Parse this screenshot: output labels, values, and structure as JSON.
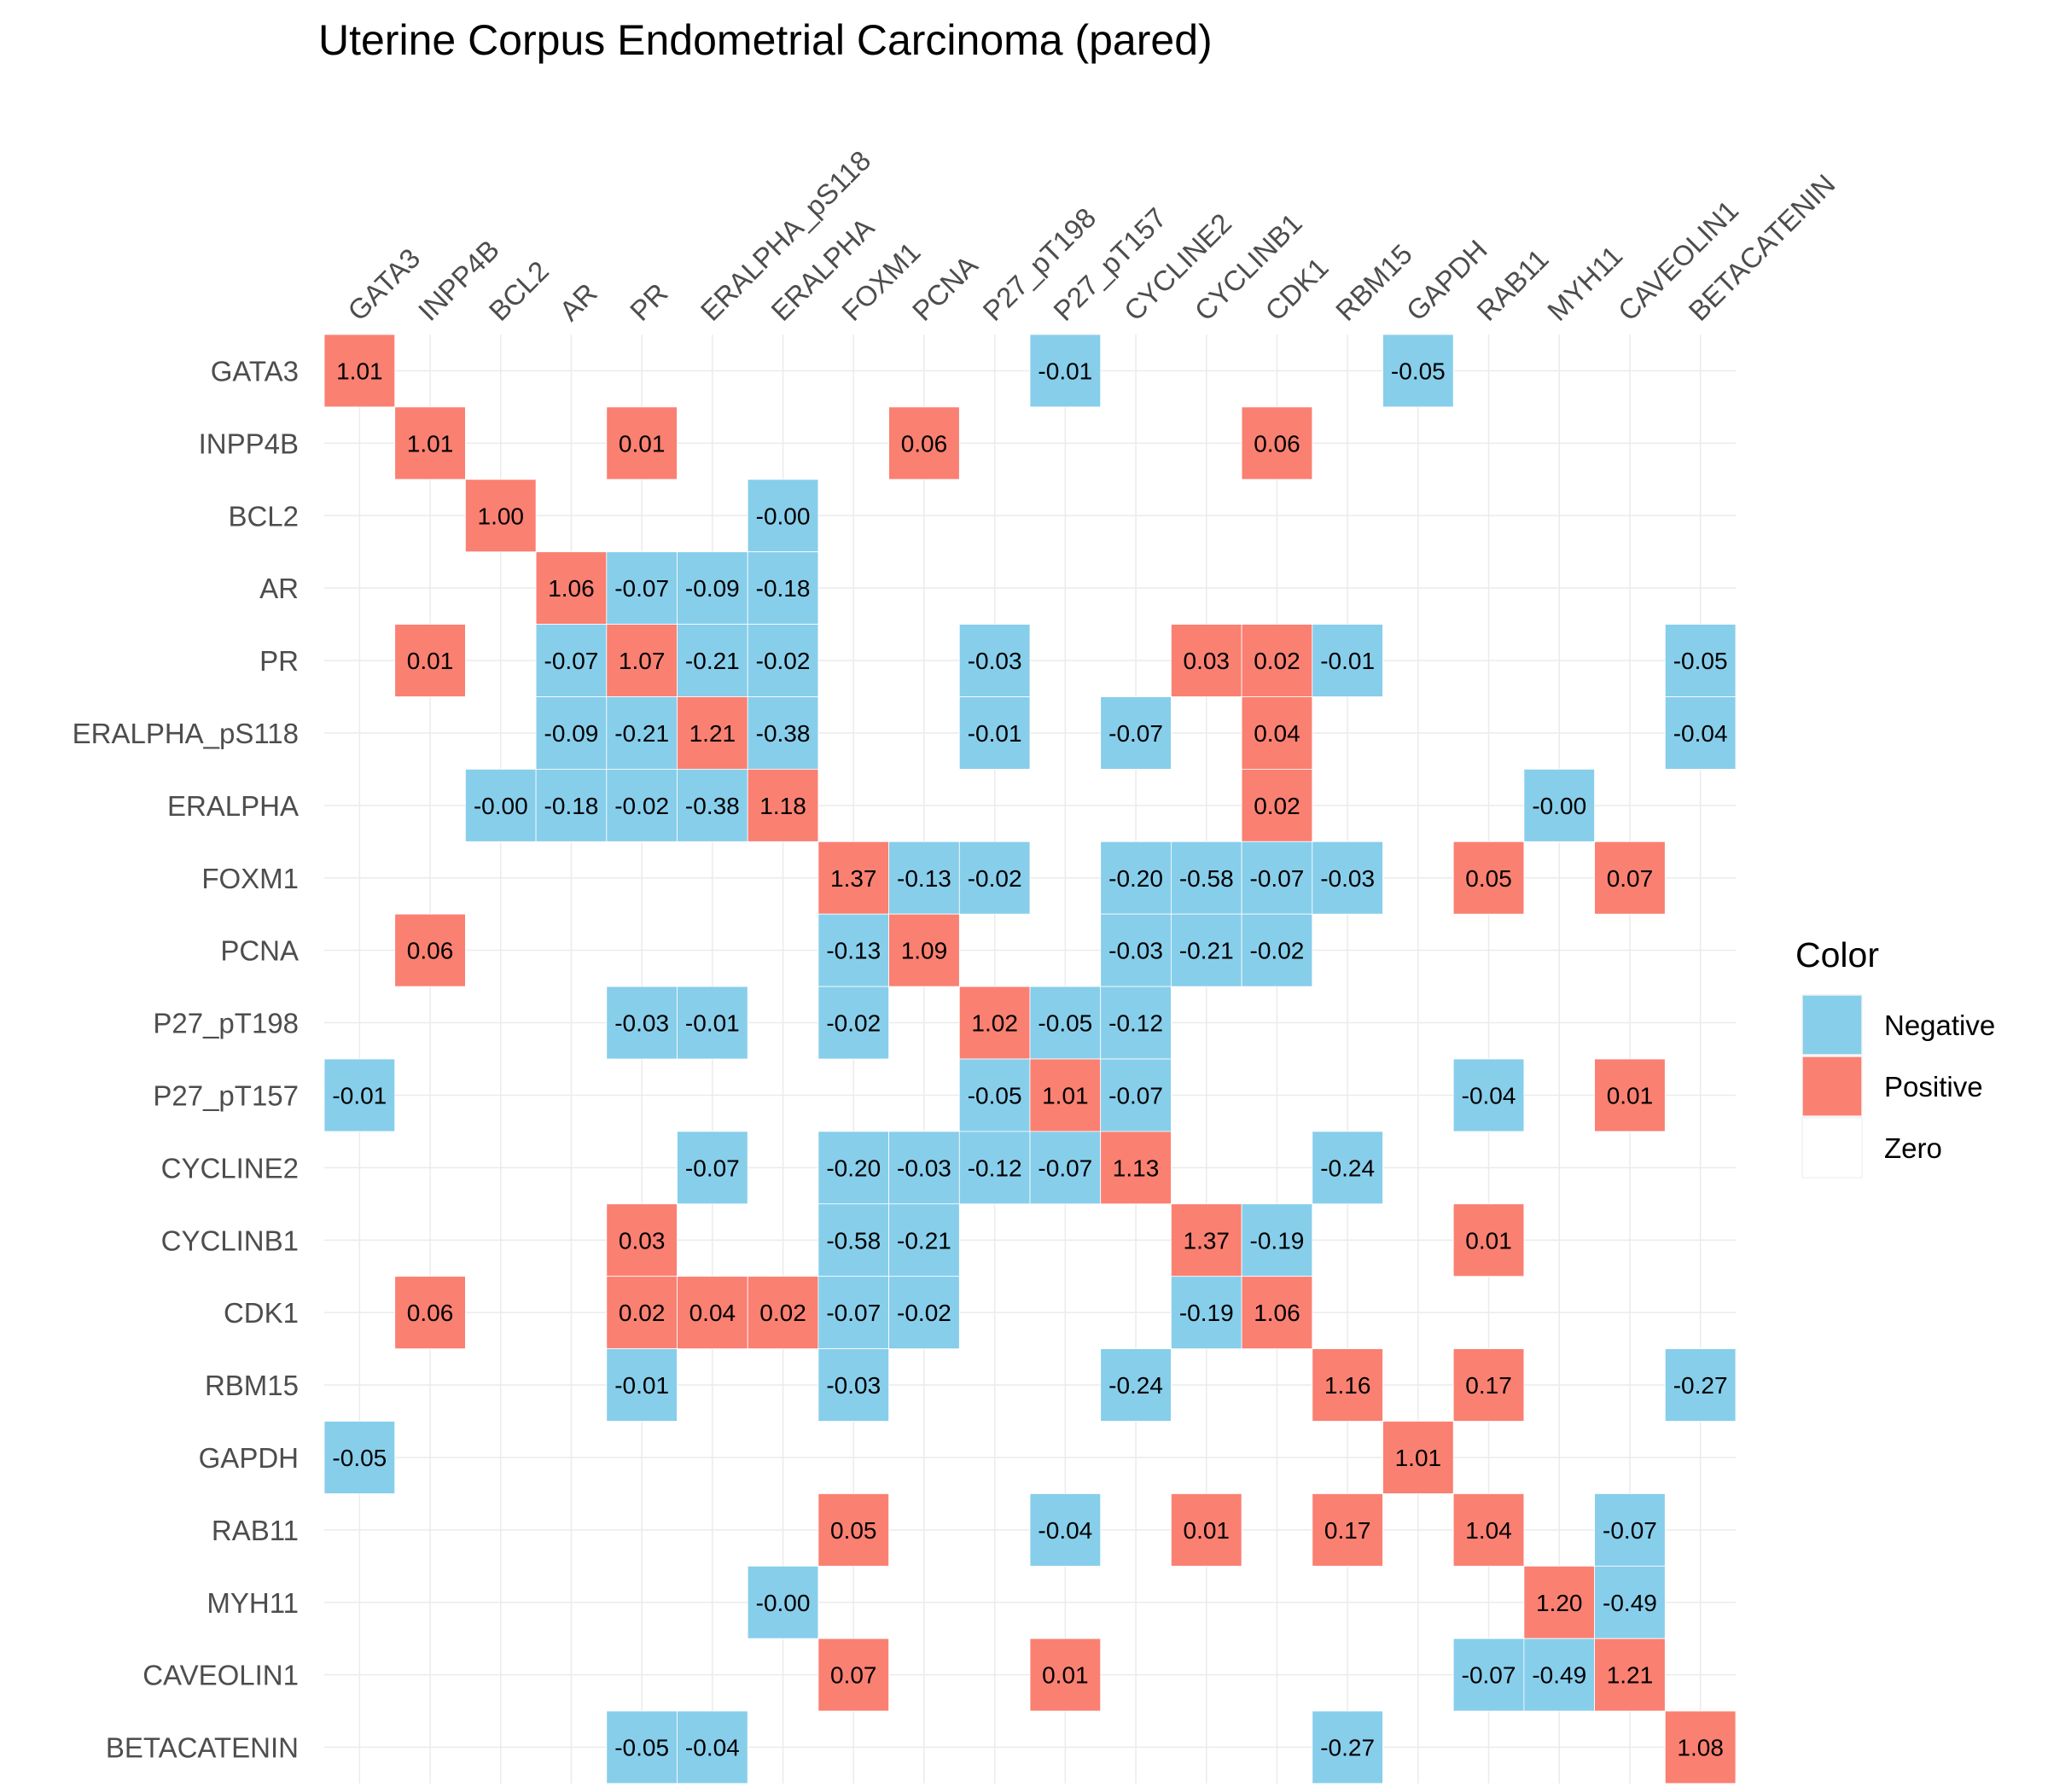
{
  "chart_data": {
    "type": "heatmap",
    "title": "Uterine Corpus Endometrial Carcinoma (pared)",
    "xlabel": "",
    "ylabel": "",
    "labels": [
      "GATA3",
      "INPP4B",
      "BCL2",
      "AR",
      "PR",
      "ERALPHA_pS118",
      "ERALPHA",
      "FOXM1",
      "PCNA",
      "P27_pT198",
      "P27_pT157",
      "CYCLINE2",
      "CYCLINB1",
      "CDK1",
      "RBM15",
      "GAPDH",
      "RAB11",
      "MYH11",
      "CAVEOLIN1",
      "BETACATENIN"
    ],
    "cells": [
      {
        "row": "GATA3",
        "col": "GATA3",
        "label": "1.01",
        "sign": "Positive"
      },
      {
        "row": "GATA3",
        "col": "P27_pT157",
        "label": "-0.01",
        "sign": "Negative"
      },
      {
        "row": "GATA3",
        "col": "GAPDH",
        "label": "-0.05",
        "sign": "Negative"
      },
      {
        "row": "INPP4B",
        "col": "INPP4B",
        "label": "1.01",
        "sign": "Positive"
      },
      {
        "row": "INPP4B",
        "col": "PR",
        "label": "0.01",
        "sign": "Positive"
      },
      {
        "row": "INPP4B",
        "col": "PCNA",
        "label": "0.06",
        "sign": "Positive"
      },
      {
        "row": "INPP4B",
        "col": "CDK1",
        "label": "0.06",
        "sign": "Positive"
      },
      {
        "row": "BCL2",
        "col": "BCL2",
        "label": "1.00",
        "sign": "Positive"
      },
      {
        "row": "BCL2",
        "col": "ERALPHA",
        "label": "-0.00",
        "sign": "Negative"
      },
      {
        "row": "AR",
        "col": "AR",
        "label": "1.06",
        "sign": "Positive"
      },
      {
        "row": "AR",
        "col": "PR",
        "label": "-0.07",
        "sign": "Negative"
      },
      {
        "row": "AR",
        "col": "ERALPHA_pS118",
        "label": "-0.09",
        "sign": "Negative"
      },
      {
        "row": "AR",
        "col": "ERALPHA",
        "label": "-0.18",
        "sign": "Negative"
      },
      {
        "row": "PR",
        "col": "INPP4B",
        "label": "0.01",
        "sign": "Positive"
      },
      {
        "row": "PR",
        "col": "AR",
        "label": "-0.07",
        "sign": "Negative"
      },
      {
        "row": "PR",
        "col": "PR",
        "label": "1.07",
        "sign": "Positive"
      },
      {
        "row": "PR",
        "col": "ERALPHA_pS118",
        "label": "-0.21",
        "sign": "Negative"
      },
      {
        "row": "PR",
        "col": "ERALPHA",
        "label": "-0.02",
        "sign": "Negative"
      },
      {
        "row": "PR",
        "col": "P27_pT198",
        "label": "-0.03",
        "sign": "Negative"
      },
      {
        "row": "PR",
        "col": "CYCLINB1",
        "label": "0.03",
        "sign": "Positive"
      },
      {
        "row": "PR",
        "col": "CDK1",
        "label": "0.02",
        "sign": "Positive"
      },
      {
        "row": "PR",
        "col": "RBM15",
        "label": "-0.01",
        "sign": "Negative"
      },
      {
        "row": "PR",
        "col": "BETACATENIN",
        "label": "-0.05",
        "sign": "Negative"
      },
      {
        "row": "ERALPHA_pS118",
        "col": "AR",
        "label": "-0.09",
        "sign": "Negative"
      },
      {
        "row": "ERALPHA_pS118",
        "col": "PR",
        "label": "-0.21",
        "sign": "Negative"
      },
      {
        "row": "ERALPHA_pS118",
        "col": "ERALPHA_pS118",
        "label": "1.21",
        "sign": "Positive"
      },
      {
        "row": "ERALPHA_pS118",
        "col": "ERALPHA",
        "label": "-0.38",
        "sign": "Negative"
      },
      {
        "row": "ERALPHA_pS118",
        "col": "P27_pT198",
        "label": "-0.01",
        "sign": "Negative"
      },
      {
        "row": "ERALPHA_pS118",
        "col": "CYCLINE2",
        "label": "-0.07",
        "sign": "Negative"
      },
      {
        "row": "ERALPHA_pS118",
        "col": "CDK1",
        "label": "0.04",
        "sign": "Positive"
      },
      {
        "row": "ERALPHA_pS118",
        "col": "BETACATENIN",
        "label": "-0.04",
        "sign": "Negative"
      },
      {
        "row": "ERALPHA",
        "col": "BCL2",
        "label": "-0.00",
        "sign": "Negative"
      },
      {
        "row": "ERALPHA",
        "col": "AR",
        "label": "-0.18",
        "sign": "Negative"
      },
      {
        "row": "ERALPHA",
        "col": "PR",
        "label": "-0.02",
        "sign": "Negative"
      },
      {
        "row": "ERALPHA",
        "col": "ERALPHA_pS118",
        "label": "-0.38",
        "sign": "Negative"
      },
      {
        "row": "ERALPHA",
        "col": "ERALPHA",
        "label": "1.18",
        "sign": "Positive"
      },
      {
        "row": "ERALPHA",
        "col": "CDK1",
        "label": "0.02",
        "sign": "Positive"
      },
      {
        "row": "ERALPHA",
        "col": "MYH11",
        "label": "-0.00",
        "sign": "Negative"
      },
      {
        "row": "FOXM1",
        "col": "FOXM1",
        "label": "1.37",
        "sign": "Positive"
      },
      {
        "row": "FOXM1",
        "col": "PCNA",
        "label": "-0.13",
        "sign": "Negative"
      },
      {
        "row": "FOXM1",
        "col": "P27_pT198",
        "label": "-0.02",
        "sign": "Negative"
      },
      {
        "row": "FOXM1",
        "col": "CYCLINE2",
        "label": "-0.20",
        "sign": "Negative"
      },
      {
        "row": "FOXM1",
        "col": "CYCLINB1",
        "label": "-0.58",
        "sign": "Negative"
      },
      {
        "row": "FOXM1",
        "col": "CDK1",
        "label": "-0.07",
        "sign": "Negative"
      },
      {
        "row": "FOXM1",
        "col": "RBM15",
        "label": "-0.03",
        "sign": "Negative"
      },
      {
        "row": "FOXM1",
        "col": "RAB11",
        "label": "0.05",
        "sign": "Positive"
      },
      {
        "row": "FOXM1",
        "col": "CAVEOLIN1",
        "label": "0.07",
        "sign": "Positive"
      },
      {
        "row": "PCNA",
        "col": "INPP4B",
        "label": "0.06",
        "sign": "Positive"
      },
      {
        "row": "PCNA",
        "col": "FOXM1",
        "label": "-0.13",
        "sign": "Negative"
      },
      {
        "row": "PCNA",
        "col": "PCNA",
        "label": "1.09",
        "sign": "Positive"
      },
      {
        "row": "PCNA",
        "col": "CYCLINE2",
        "label": "-0.03",
        "sign": "Negative"
      },
      {
        "row": "PCNA",
        "col": "CYCLINB1",
        "label": "-0.21",
        "sign": "Negative"
      },
      {
        "row": "PCNA",
        "col": "CDK1",
        "label": "-0.02",
        "sign": "Negative"
      },
      {
        "row": "P27_pT198",
        "col": "PR",
        "label": "-0.03",
        "sign": "Negative"
      },
      {
        "row": "P27_pT198",
        "col": "ERALPHA_pS118",
        "label": "-0.01",
        "sign": "Negative"
      },
      {
        "row": "P27_pT198",
        "col": "FOXM1",
        "label": "-0.02",
        "sign": "Negative"
      },
      {
        "row": "P27_pT198",
        "col": "P27_pT198",
        "label": "1.02",
        "sign": "Positive"
      },
      {
        "row": "P27_pT198",
        "col": "P27_pT157",
        "label": "-0.05",
        "sign": "Negative"
      },
      {
        "row": "P27_pT198",
        "col": "CYCLINE2",
        "label": "-0.12",
        "sign": "Negative"
      },
      {
        "row": "P27_pT157",
        "col": "GATA3",
        "label": "-0.01",
        "sign": "Negative"
      },
      {
        "row": "P27_pT157",
        "col": "P27_pT198",
        "label": "-0.05",
        "sign": "Negative"
      },
      {
        "row": "P27_pT157",
        "col": "P27_pT157",
        "label": "1.01",
        "sign": "Positive"
      },
      {
        "row": "P27_pT157",
        "col": "CYCLINE2",
        "label": "-0.07",
        "sign": "Negative"
      },
      {
        "row": "P27_pT157",
        "col": "RAB11",
        "label": "-0.04",
        "sign": "Negative"
      },
      {
        "row": "P27_pT157",
        "col": "CAVEOLIN1",
        "label": "0.01",
        "sign": "Positive"
      },
      {
        "row": "CYCLINE2",
        "col": "ERALPHA_pS118",
        "label": "-0.07",
        "sign": "Negative"
      },
      {
        "row": "CYCLINE2",
        "col": "FOXM1",
        "label": "-0.20",
        "sign": "Negative"
      },
      {
        "row": "CYCLINE2",
        "col": "PCNA",
        "label": "-0.03",
        "sign": "Negative"
      },
      {
        "row": "CYCLINE2",
        "col": "P27_pT198",
        "label": "-0.12",
        "sign": "Negative"
      },
      {
        "row": "CYCLINE2",
        "col": "P27_pT157",
        "label": "-0.07",
        "sign": "Negative"
      },
      {
        "row": "CYCLINE2",
        "col": "CYCLINE2",
        "label": "1.13",
        "sign": "Positive"
      },
      {
        "row": "CYCLINE2",
        "col": "RBM15",
        "label": "-0.24",
        "sign": "Negative"
      },
      {
        "row": "CYCLINB1",
        "col": "PR",
        "label": "0.03",
        "sign": "Positive"
      },
      {
        "row": "CYCLINB1",
        "col": "FOXM1",
        "label": "-0.58",
        "sign": "Negative"
      },
      {
        "row": "CYCLINB1",
        "col": "PCNA",
        "label": "-0.21",
        "sign": "Negative"
      },
      {
        "row": "CYCLINB1",
        "col": "CYCLINB1",
        "label": "1.37",
        "sign": "Positive"
      },
      {
        "row": "CYCLINB1",
        "col": "CDK1",
        "label": "-0.19",
        "sign": "Negative"
      },
      {
        "row": "CYCLINB1",
        "col": "RAB11",
        "label": "0.01",
        "sign": "Positive"
      },
      {
        "row": "CDK1",
        "col": "INPP4B",
        "label": "0.06",
        "sign": "Positive"
      },
      {
        "row": "CDK1",
        "col": "PR",
        "label": "0.02",
        "sign": "Positive"
      },
      {
        "row": "CDK1",
        "col": "ERALPHA_pS118",
        "label": "0.04",
        "sign": "Positive"
      },
      {
        "row": "CDK1",
        "col": "ERALPHA",
        "label": "0.02",
        "sign": "Positive"
      },
      {
        "row": "CDK1",
        "col": "FOXM1",
        "label": "-0.07",
        "sign": "Negative"
      },
      {
        "row": "CDK1",
        "col": "PCNA",
        "label": "-0.02",
        "sign": "Negative"
      },
      {
        "row": "CDK1",
        "col": "CYCLINB1",
        "label": "-0.19",
        "sign": "Negative"
      },
      {
        "row": "CDK1",
        "col": "CDK1",
        "label": "1.06",
        "sign": "Positive"
      },
      {
        "row": "RBM15",
        "col": "PR",
        "label": "-0.01",
        "sign": "Negative"
      },
      {
        "row": "RBM15",
        "col": "FOXM1",
        "label": "-0.03",
        "sign": "Negative"
      },
      {
        "row": "RBM15",
        "col": "CYCLINE2",
        "label": "-0.24",
        "sign": "Negative"
      },
      {
        "row": "RBM15",
        "col": "RBM15",
        "label": "1.16",
        "sign": "Positive"
      },
      {
        "row": "RBM15",
        "col": "RAB11",
        "label": "0.17",
        "sign": "Positive"
      },
      {
        "row": "RBM15",
        "col": "BETACATENIN",
        "label": "-0.27",
        "sign": "Negative"
      },
      {
        "row": "GAPDH",
        "col": "GATA3",
        "label": "-0.05",
        "sign": "Negative"
      },
      {
        "row": "GAPDH",
        "col": "GAPDH",
        "label": "1.01",
        "sign": "Positive"
      },
      {
        "row": "RAB11",
        "col": "FOXM1",
        "label": "0.05",
        "sign": "Positive"
      },
      {
        "row": "RAB11",
        "col": "P27_pT157",
        "label": "-0.04",
        "sign": "Negative"
      },
      {
        "row": "RAB11",
        "col": "CYCLINB1",
        "label": "0.01",
        "sign": "Positive"
      },
      {
        "row": "RAB11",
        "col": "RBM15",
        "label": "0.17",
        "sign": "Positive"
      },
      {
        "row": "RAB11",
        "col": "RAB11",
        "label": "1.04",
        "sign": "Positive"
      },
      {
        "row": "RAB11",
        "col": "CAVEOLIN1",
        "label": "-0.07",
        "sign": "Negative"
      },
      {
        "row": "MYH11",
        "col": "ERALPHA",
        "label": "-0.00",
        "sign": "Negative"
      },
      {
        "row": "MYH11",
        "col": "MYH11",
        "label": "1.20",
        "sign": "Positive"
      },
      {
        "row": "MYH11",
        "col": "CAVEOLIN1",
        "label": "-0.49",
        "sign": "Negative"
      },
      {
        "row": "CAVEOLIN1",
        "col": "FOXM1",
        "label": "0.07",
        "sign": "Positive"
      },
      {
        "row": "CAVEOLIN1",
        "col": "P27_pT157",
        "label": "0.01",
        "sign": "Positive"
      },
      {
        "row": "CAVEOLIN1",
        "col": "RAB11",
        "label": "-0.07",
        "sign": "Negative"
      },
      {
        "row": "CAVEOLIN1",
        "col": "MYH11",
        "label": "-0.49",
        "sign": "Negative"
      },
      {
        "row": "CAVEOLIN1",
        "col": "CAVEOLIN1",
        "label": "1.21",
        "sign": "Positive"
      },
      {
        "row": "BETACATENIN",
        "col": "PR",
        "label": "-0.05",
        "sign": "Negative"
      },
      {
        "row": "BETACATENIN",
        "col": "ERALPHA_pS118",
        "label": "-0.04",
        "sign": "Negative"
      },
      {
        "row": "BETACATENIN",
        "col": "RBM15",
        "label": "-0.27",
        "sign": "Negative"
      },
      {
        "row": "BETACATENIN",
        "col": "BETACATENIN",
        "label": "1.08",
        "sign": "Positive"
      }
    ],
    "legend": {
      "title": "Color",
      "position": "right",
      "entries": [
        {
          "label": "Negative",
          "color": "#87ceeb"
        },
        {
          "label": "Positive",
          "color": "#fa8072"
        },
        {
          "label": "Zero",
          "color": "#ffffff"
        }
      ]
    },
    "grid": true,
    "colors": {
      "Negative": "#87ceeb",
      "Positive": "#fa8072",
      "Zero": "#ffffff",
      "gridline": "#ebebeb"
    }
  }
}
